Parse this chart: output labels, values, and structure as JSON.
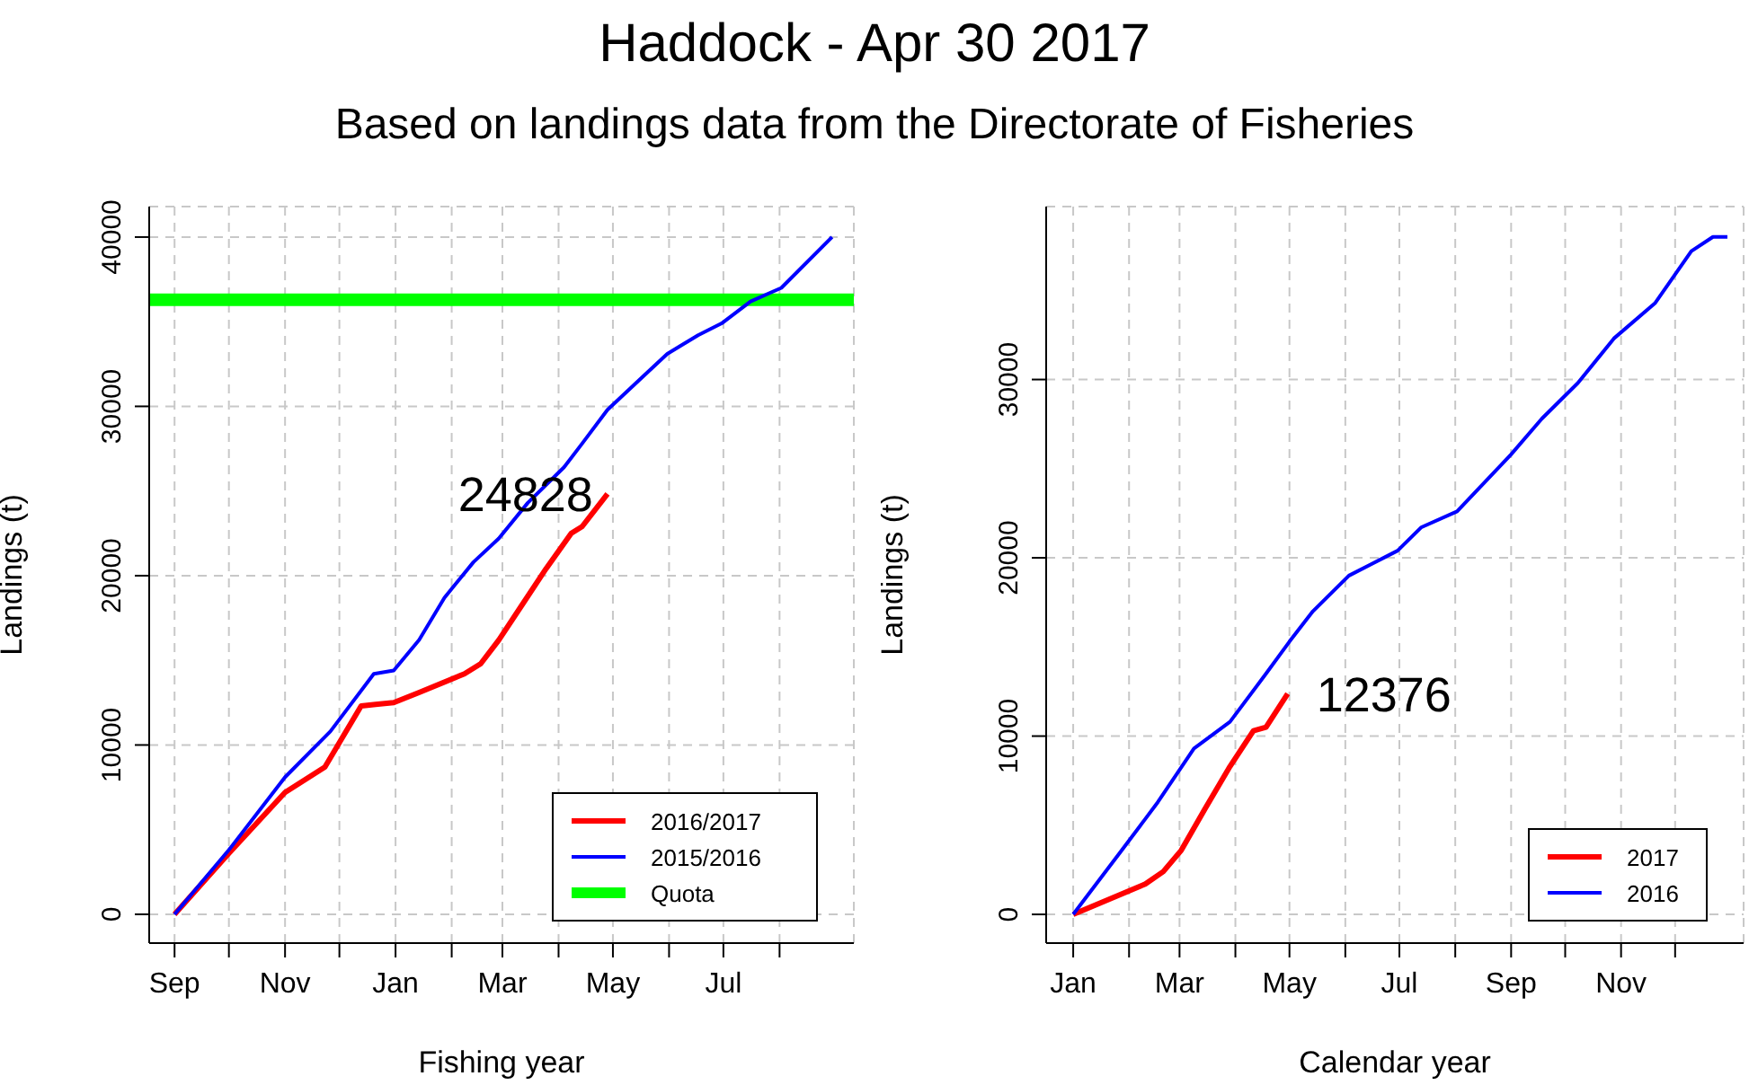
{
  "chart_data": [
    {
      "type": "line",
      "title": "Haddock - Apr 30 2017",
      "subtitle": "Based on landings data from the Directorate of Fisheries",
      "xlabel": "Fishing year",
      "ylabel": "Landings (t)",
      "xlim": [
        "2016-08-18",
        "2017-09-11"
      ],
      "ylim": [
        -1700,
        41800
      ],
      "xticks": [
        {
          "value": "2016-09-01",
          "label": "Sep"
        },
        {
          "value": "2016-10-01",
          "label": null
        },
        {
          "value": "2016-11-01",
          "label": "Nov"
        },
        {
          "value": "2016-12-01",
          "label": null
        },
        {
          "value": "2017-01-01",
          "label": "Jan"
        },
        {
          "value": "2017-02-01",
          "label": null
        },
        {
          "value": "2017-03-01",
          "label": "Mar"
        },
        {
          "value": "2017-04-01",
          "label": null
        },
        {
          "value": "2017-05-01",
          "label": "May"
        },
        {
          "value": "2017-06-01",
          "label": null
        },
        {
          "value": "2017-07-01",
          "label": "Jul"
        },
        {
          "value": "2017-08-01",
          "label": null
        }
      ],
      "yticks": [
        0,
        10000,
        20000,
        30000,
        40000
      ],
      "grid": true,
      "legend": "bottom right",
      "series": [
        {
          "name": "2016/2017",
          "color": "#ff0000",
          "x": [
            "2016-09-01",
            "2016-10-01",
            "2016-11-01",
            "2016-11-23",
            "2016-12-13",
            "2016-12-21",
            "2016-12-31",
            "2017-01-14",
            "2017-02-08",
            "2017-02-17",
            "2017-02-27",
            "2017-03-12",
            "2017-03-25",
            "2017-04-08",
            "2017-04-14",
            "2017-04-28"
          ],
          "values": [
            0,
            3600,
            7200,
            8700,
            12300,
            12400,
            12500,
            13100,
            14200,
            14800,
            16200,
            18300,
            20400,
            22500,
            22900,
            24828
          ]
        },
        {
          "name": "2015/2016",
          "color": "#0000ff",
          "x": [
            "2016-09-01",
            "2016-10-01",
            "2016-11-01",
            "2016-11-26",
            "2016-12-20",
            "2016-12-31",
            "2017-01-14",
            "2017-01-28",
            "2017-02-13",
            "2017-02-27",
            "2017-03-15",
            "2017-04-04",
            "2017-04-14",
            "2017-04-28",
            "2017-05-14",
            "2017-05-31",
            "2017-06-17",
            "2017-06-30",
            "2017-07-16",
            "2017-08-02",
            "2017-08-30"
          ],
          "values": [
            0,
            3800,
            8100,
            10800,
            14200,
            14400,
            16200,
            18700,
            20800,
            22200,
            24300,
            26400,
            27800,
            29800,
            31400,
            33100,
            34200,
            34900,
            36200,
            37000,
            40000
          ]
        }
      ],
      "ref_lines": [
        {
          "axis": "y",
          "value": 36300,
          "label": "Quota",
          "color": "#00ff00"
        }
      ],
      "annotations": [
        {
          "text": "24828",
          "x": "2017-04-28",
          "y": 24828
        }
      ]
    },
    {
      "type": "line",
      "xlabel": "Calendar year",
      "ylabel": "Landings (t)",
      "xlim": [
        "2016-12-17",
        "2018-01-08"
      ],
      "ylim": [
        -1610,
        39700
      ],
      "xticks": [
        {
          "value": "2017-01-01",
          "label": "Jan"
        },
        {
          "value": "2017-02-01",
          "label": null
        },
        {
          "value": "2017-03-01",
          "label": "Mar"
        },
        {
          "value": "2017-04-01",
          "label": null
        },
        {
          "value": "2017-05-01",
          "label": "May"
        },
        {
          "value": "2017-06-01",
          "label": null
        },
        {
          "value": "2017-07-01",
          "label": "Jul"
        },
        {
          "value": "2017-08-01",
          "label": null
        },
        {
          "value": "2017-09-01",
          "label": "Sep"
        },
        {
          "value": "2017-10-01",
          "label": null
        },
        {
          "value": "2017-11-01",
          "label": "Nov"
        },
        {
          "value": "2017-12-01",
          "label": null
        }
      ],
      "yticks": [
        0,
        10000,
        20000,
        30000
      ],
      "grid": true,
      "legend": "bottom right",
      "series": [
        {
          "name": "2017",
          "color": "#ff0000",
          "x": [
            "2017-01-01",
            "2017-02-10",
            "2017-02-20",
            "2017-03-02",
            "2017-03-15",
            "2017-03-29",
            "2017-04-11",
            "2017-04-18",
            "2017-04-30"
          ],
          "values": [
            0,
            1700,
            2400,
            3600,
            5900,
            8300,
            10300,
            10500,
            12376
          ]
        },
        {
          "name": "2016",
          "color": "#0000ff",
          "x": [
            "2017-01-01",
            "2017-01-28",
            "2017-02-17",
            "2017-03-09",
            "2017-03-29",
            "2017-04-18",
            "2017-05-01",
            "2017-05-14",
            "2017-06-03",
            "2017-06-30",
            "2017-07-13",
            "2017-08-02",
            "2017-09-01",
            "2017-09-18",
            "2017-10-08",
            "2017-10-28",
            "2017-11-20",
            "2017-12-10",
            "2017-12-22",
            "2017-12-30"
          ],
          "values": [
            0,
            3600,
            6300,
            9300,
            10800,
            13500,
            15300,
            17000,
            19000,
            20400,
            21700,
            22600,
            25800,
            27800,
            29800,
            32300,
            34300,
            37200,
            38000,
            38000
          ]
        }
      ],
      "annotations": [
        {
          "text": "12376",
          "x": "2017-04-30",
          "y": 12376
        }
      ]
    }
  ]
}
